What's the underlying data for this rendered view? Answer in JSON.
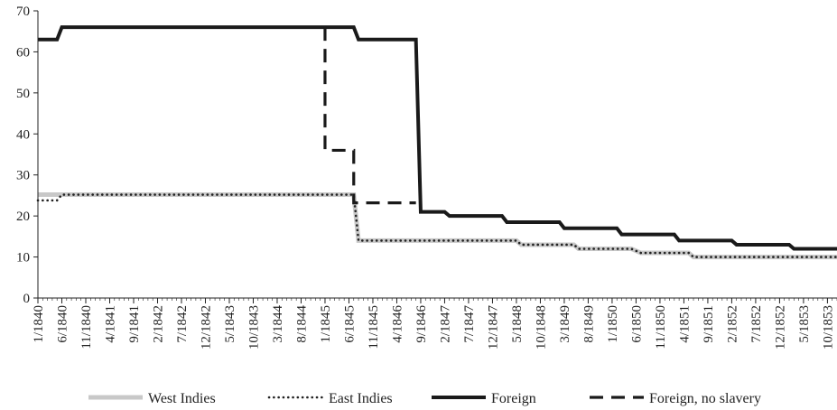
{
  "chart_data": {
    "type": "line",
    "title": "",
    "xlabel": "",
    "ylabel": "",
    "ylim": [
      0,
      70
    ],
    "y_ticks": [
      0,
      10,
      20,
      30,
      40,
      50,
      60,
      70
    ],
    "x_range": [
      "1/1840",
      "12/1853"
    ],
    "x_tick_labels": [
      "1/1840",
      "6/1840",
      "11/1840",
      "4/1841",
      "9/1841",
      "2/1842",
      "7/1842",
      "12/1842",
      "5/1843",
      "10/1843",
      "3/1844",
      "8/1844",
      "1/1845",
      "6/1845",
      "11/1845",
      "4/1846",
      "9/1846",
      "2/1847",
      "7/1847",
      "12/1847",
      "5/1848",
      "10/1848",
      "3/1849",
      "8/1849",
      "1/1850",
      "6/1850",
      "11/1850",
      "4/1851",
      "9/1851",
      "2/1852",
      "7/1852",
      "12/1852",
      "5/1853",
      "10/1853"
    ],
    "grid": false,
    "legend_position": "bottom",
    "series": [
      {
        "name": "West Indies",
        "color": "#c8c8c8",
        "style": "solid-light",
        "points": [
          [
            "1/1840",
            25.2
          ],
          [
            "7/1845",
            25.2
          ],
          [
            "8/1845",
            14
          ],
          [
            "5/1848",
            14
          ],
          [
            "6/1848",
            13
          ],
          [
            "5/1849",
            13
          ],
          [
            "6/1849",
            12
          ],
          [
            "5/1850",
            12
          ],
          [
            "7/1850",
            11
          ],
          [
            "5/1851",
            11
          ],
          [
            "6/1851",
            10
          ],
          [
            "12/1853",
            10
          ]
        ]
      },
      {
        "name": "East Indies",
        "color": "#222222",
        "style": "dotted",
        "points": [
          [
            "1/1840",
            23.8
          ],
          [
            "5/1840",
            23.8
          ],
          [
            "6/1840",
            25.2
          ],
          [
            "7/1845",
            25.2
          ],
          [
            "8/1845",
            14
          ],
          [
            "5/1848",
            14
          ],
          [
            "6/1848",
            13
          ],
          [
            "5/1849",
            13
          ],
          [
            "6/1849",
            12
          ],
          [
            "5/1850",
            12
          ],
          [
            "7/1850",
            11
          ],
          [
            "5/1851",
            11
          ],
          [
            "6/1851",
            10
          ],
          [
            "12/1853",
            10
          ]
        ]
      },
      {
        "name": "Foreign",
        "color": "#1a1a1a",
        "style": "solid-heavy",
        "points": [
          [
            "1/1840",
            63
          ],
          [
            "5/1840",
            63
          ],
          [
            "6/1840",
            66
          ],
          [
            "7/1845",
            66
          ],
          [
            "8/1845",
            63
          ],
          [
            "8/1846",
            63
          ],
          [
            "9/1846",
            21
          ],
          [
            "2/1847",
            21
          ],
          [
            "3/1847",
            20
          ],
          [
            "2/1848",
            20
          ],
          [
            "3/1848",
            18.5
          ],
          [
            "2/1849",
            18.5
          ],
          [
            "3/1849",
            17
          ],
          [
            "2/1850",
            17
          ],
          [
            "3/1850",
            15.5
          ],
          [
            "2/1851",
            15.5
          ],
          [
            "3/1851",
            14
          ],
          [
            "2/1852",
            14
          ],
          [
            "3/1852",
            13
          ],
          [
            "2/1853",
            13
          ],
          [
            "3/1853",
            12
          ],
          [
            "12/1853",
            12
          ]
        ]
      },
      {
        "name": "Foreign, no slavery",
        "color": "#1a1a1a",
        "style": "dashed",
        "points": [
          [
            "1/1845",
            66
          ],
          [
            "1/1845",
            36
          ],
          [
            "7/1845",
            36
          ],
          [
            "7/1845",
            23.2
          ],
          [
            "8/1846",
            23.2
          ]
        ]
      }
    ]
  }
}
